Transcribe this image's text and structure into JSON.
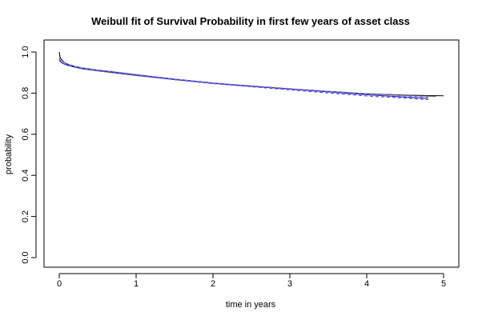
{
  "chart_data": {
    "type": "line",
    "title": "Weibull fit of Survival Probability in first few years of asset class",
    "xlabel": "time in years",
    "ylabel": "probability",
    "xlim": [
      0,
      5
    ],
    "ylim": [
      0,
      1
    ],
    "x_ticks": [
      "0",
      "1",
      "2",
      "3",
      "4",
      "5"
    ],
    "y_ticks": [
      "0.0",
      "0.2",
      "0.4",
      "0.6",
      "0.8",
      "1.0"
    ],
    "grid": false,
    "legend": "none",
    "series": [
      {
        "style": "solid",
        "color": "#000000",
        "x": [
          0.0,
          0.01,
          0.03,
          0.06,
          0.1,
          0.2,
          0.3,
          0.5,
          0.7,
          1.0,
          1.5,
          2.0,
          2.5,
          3.0,
          3.5,
          4.0,
          4.5,
          5.0
        ],
        "y": [
          1.0,
          0.975,
          0.962,
          0.95,
          0.942,
          0.93,
          0.922,
          0.912,
          0.903,
          0.889,
          0.868,
          0.849,
          0.834,
          0.821,
          0.808,
          0.797,
          0.79,
          0.787
        ]
      },
      {
        "style": "solid",
        "color": "#555555",
        "x": [
          0.0,
          0.01,
          0.03,
          0.06,
          0.1,
          0.2,
          0.3,
          0.5,
          0.7,
          1.0,
          1.5,
          2.0,
          2.5,
          3.0,
          3.5,
          4.0,
          4.5,
          4.9
        ],
        "y": [
          0.97,
          0.958,
          0.95,
          0.942,
          0.936,
          0.926,
          0.918,
          0.908,
          0.899,
          0.886,
          0.866,
          0.848,
          0.833,
          0.82,
          0.808,
          0.797,
          0.789,
          0.784
        ]
      },
      {
        "style": "solid",
        "color": "#2a2ad8",
        "x": [
          0.0,
          0.01,
          0.03,
          0.06,
          0.1,
          0.2,
          0.3,
          0.5,
          0.7,
          1.0,
          1.5,
          2.0,
          2.5,
          3.0,
          3.5,
          4.0,
          4.5,
          4.8
        ],
        "y": [
          0.965,
          0.955,
          0.948,
          0.942,
          0.936,
          0.927,
          0.92,
          0.911,
          0.903,
          0.889,
          0.867,
          0.848,
          0.834,
          0.82,
          0.806,
          0.792,
          0.781,
          0.774
        ]
      },
      {
        "style": "dashed",
        "color": "#4a4ae0",
        "x": [
          0.0,
          0.02,
          0.05,
          0.1,
          0.2,
          0.3,
          0.5,
          0.7,
          1.0,
          1.5,
          2.0,
          2.5,
          3.0,
          3.5,
          4.0,
          4.5,
          4.8
        ],
        "y": [
          0.96,
          0.952,
          0.945,
          0.937,
          0.928,
          0.92,
          0.91,
          0.901,
          0.886,
          0.865,
          0.846,
          0.831,
          0.816,
          0.801,
          0.786,
          0.776,
          0.768
        ]
      },
      {
        "style": "dashed",
        "color": "#8a7fe0",
        "x": [
          0.0,
          0.02,
          0.05,
          0.1,
          0.2,
          0.3,
          0.5,
          0.7,
          1.0,
          1.5,
          2.0,
          2.5,
          3.0,
          3.5,
          4.0,
          4.5,
          4.8
        ],
        "y": [
          0.968,
          0.958,
          0.95,
          0.942,
          0.931,
          0.923,
          0.913,
          0.905,
          0.891,
          0.869,
          0.85,
          0.836,
          0.822,
          0.809,
          0.796,
          0.786,
          0.78
        ]
      }
    ]
  }
}
